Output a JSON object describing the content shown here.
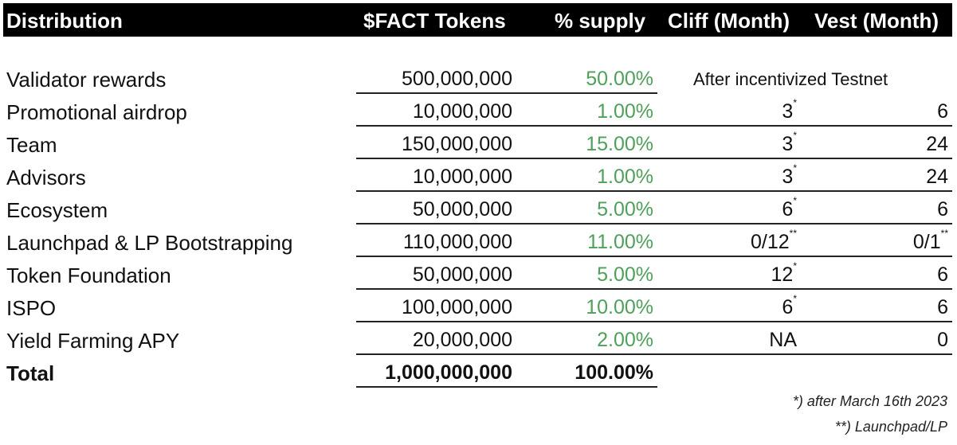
{
  "headers": {
    "distribution": "Distribution",
    "tokens": "$FACT Tokens",
    "supply": "% supply",
    "cliff": "Cliff (Month)",
    "vest": "Vest (Month)"
  },
  "rows": [
    {
      "label": "Validator rewards",
      "tokens": "500,000,000",
      "pct": "50.00%",
      "note": "After incentivized Testnet"
    },
    {
      "label": "Promotional airdrop",
      "tokens": "10,000,000",
      "pct": "1.00%",
      "cliff": "3",
      "cliff_mark": "*",
      "vest": "6",
      "vest_mark": ""
    },
    {
      "label": "Team",
      "tokens": "150,000,000",
      "pct": "15.00%",
      "cliff": "3",
      "cliff_mark": "*",
      "vest": "24",
      "vest_mark": ""
    },
    {
      "label": "Advisors",
      "tokens": "10,000,000",
      "pct": "1.00%",
      "cliff": "3",
      "cliff_mark": "*",
      "vest": "24",
      "vest_mark": ""
    },
    {
      "label": "Ecosystem",
      "tokens": "50,000,000",
      "pct": "5.00%",
      "cliff": "6",
      "cliff_mark": "*",
      "vest": "6",
      "vest_mark": ""
    },
    {
      "label": "Launchpad & LP Bootstrapping",
      "tokens": "110,000,000",
      "pct": "11.00%",
      "cliff": "0/12",
      "cliff_mark": "**",
      "vest": "0/1",
      "vest_mark": "**"
    },
    {
      "label": "Token Foundation",
      "tokens": "50,000,000",
      "pct": "5.00%",
      "cliff": "12",
      "cliff_mark": "*",
      "vest": "6",
      "vest_mark": ""
    },
    {
      "label": "ISPO",
      "tokens": "100,000,000",
      "pct": "10.00%",
      "cliff": "6",
      "cliff_mark": "*",
      "vest": "6",
      "vest_mark": ""
    },
    {
      "label": "Yield Farming APY",
      "tokens": "20,000,000",
      "pct": "2.00%",
      "cliff": "NA",
      "cliff_mark": "",
      "vest": "0",
      "vest_mark": ""
    }
  ],
  "total": {
    "label": "Total",
    "tokens": "1,000,000,000",
    "pct": "100.00%"
  },
  "footnotes": [
    "*) after March 16th 2023",
    "**) Launchpad/LP"
  ]
}
